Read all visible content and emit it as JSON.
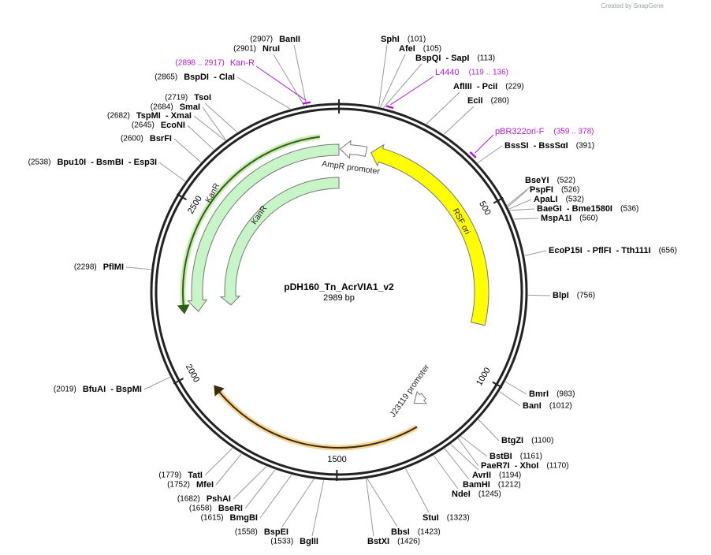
{
  "header": {
    "credit": "Created by SnapGene"
  },
  "plasmid": {
    "name": "pDH160_Tn_AcrVIA1_v2",
    "length": "2989 bp",
    "ticks": [
      500,
      1000,
      1500,
      2000,
      2500
    ]
  },
  "enzymes": [
    {
      "name": "SphI",
      "position": "(101)"
    },
    {
      "name": "AfeI",
      "position": "(105)"
    },
    {
      "name": "BspQI  - SapI",
      "position": "(113)"
    },
    {
      "name": "AflIII  - PciI",
      "position": "(229)"
    },
    {
      "name": "EciI",
      "position": "(280)"
    },
    {
      "name": "BssSI  - BssSαI",
      "position": "(391)"
    },
    {
      "name": "BseYI",
      "position": "(522)"
    },
    {
      "name": "PspFI",
      "position": "(526)"
    },
    {
      "name": "ApaLI",
      "position": "(532)"
    },
    {
      "name": "BaeGI  - Bme1580I",
      "position": "(536)"
    },
    {
      "name": "MspA1I",
      "position": "(560)"
    },
    {
      "name": "EcoP15I  - PflFI  - Tth111I",
      "position": "(656)"
    },
    {
      "name": "BlpI",
      "position": "(756)"
    },
    {
      "name": "BmrI",
      "position": "(983)"
    },
    {
      "name": "BanI",
      "position": "(1012)"
    },
    {
      "name": "BtgZI",
      "position": "(1100)"
    },
    {
      "name": "BstBI",
      "position": "(1161)"
    },
    {
      "name": "PaeR7I  - XhoI",
      "position": "(1170)"
    },
    {
      "name": "AvrII",
      "position": "(1194)"
    },
    {
      "name": "BamHI",
      "position": "(1212)"
    },
    {
      "name": "NdeI",
      "position": "(1245)"
    },
    {
      "name": "StuI",
      "position": "(1323)"
    },
    {
      "name": "BbsI",
      "position": "(1423)"
    },
    {
      "name": "BstXI",
      "position": "(1426)"
    },
    {
      "name": "BglII",
      "position": "(1533)"
    },
    {
      "name": "BspEI",
      "position": "(1558)"
    },
    {
      "name": "BmgBI",
      "position": "(1615)"
    },
    {
      "name": "BseRI",
      "position": "(1658)"
    },
    {
      "name": "PshAI",
      "position": "(1682)"
    },
    {
      "name": "MfeI",
      "position": "(1752)"
    },
    {
      "name": "TatI",
      "position": "(1779)"
    },
    {
      "name": "BfuAI  - BspMI",
      "position": "(2019)"
    },
    {
      "name": "PflMI",
      "position": "(2298)"
    },
    {
      "name": "Bpu10I  - BsmBI  - Esp3I",
      "position": "(2538)"
    },
    {
      "name": "BsrFI",
      "position": "(2600)"
    },
    {
      "name": "EcoNI",
      "position": "(2645)"
    },
    {
      "name": "TspMI  - XmaI",
      "position": "(2682)"
    },
    {
      "name": "SmaI",
      "position": "(2684)"
    },
    {
      "name": "TsoI",
      "position": "(2719)"
    },
    {
      "name": "BspDI  - ClaI",
      "position": "(2865)"
    },
    {
      "name": "NruI",
      "position": "(2901)"
    },
    {
      "name": "BanII",
      "position": "(2907)"
    }
  ],
  "primers": [
    {
      "name": "Kan-R",
      "range": "(2898 .. 2917)"
    },
    {
      "name": "L4440",
      "range": "(119 .. 136)"
    },
    {
      "name": "pBR322ori-F",
      "range": "(359 .. 378)"
    }
  ],
  "features": [
    {
      "name": "KanR"
    },
    {
      "name": "KanR"
    },
    {
      "name": "AmpR promoter"
    },
    {
      "name": "RSF ori"
    },
    {
      "name": "J23119 promoter"
    }
  ]
}
